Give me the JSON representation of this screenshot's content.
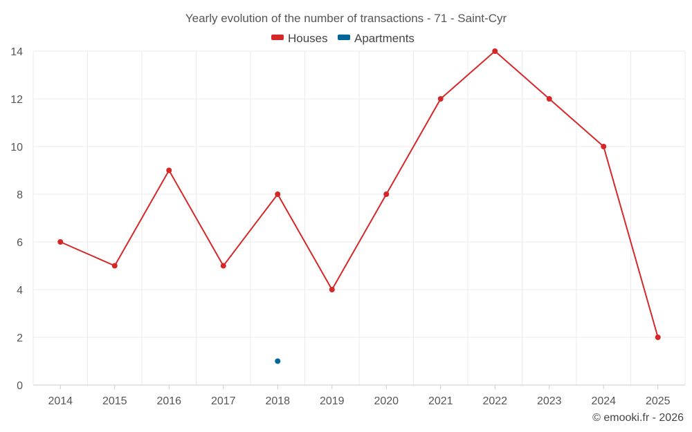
{
  "chart_data": {
    "type": "line",
    "title": "Yearly evolution of the number of transactions - 71 - Saint-Cyr",
    "categories": [
      "2014",
      "2015",
      "2016",
      "2017",
      "2018",
      "2019",
      "2020",
      "2021",
      "2022",
      "2023",
      "2024",
      "2025"
    ],
    "series": [
      {
        "name": "Houses",
        "color": "#d62728",
        "values": [
          6,
          5,
          9,
          5,
          8,
          4,
          8,
          12,
          14,
          12,
          10,
          2
        ]
      },
      {
        "name": "Apartments",
        "color": "#006699",
        "values": [
          null,
          null,
          null,
          null,
          1,
          null,
          null,
          null,
          null,
          null,
          null,
          null
        ]
      }
    ],
    "y_ticks": [
      "0",
      "2",
      "4",
      "6",
      "8",
      "10",
      "12",
      "14"
    ],
    "ylim": [
      0,
      14
    ],
    "xlabel": "",
    "ylabel": "",
    "grid": true,
    "legend_position": "top-center",
    "credit": "© emooki.fr - 2026"
  }
}
